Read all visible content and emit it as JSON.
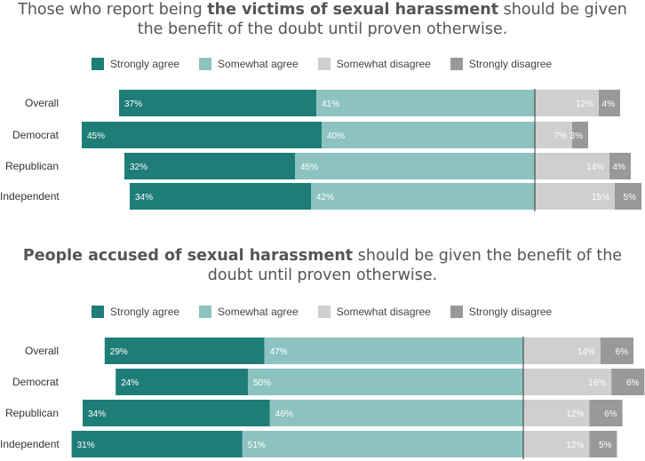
{
  "colors": {
    "strongly_agree": "#1f7d78",
    "somewhat_agree": "#8cc3c0",
    "somewhat_disagree": "#cfcfcf",
    "strongly_disagree": "#999999"
  },
  "charts": [
    {
      "title_pre": "Those who report being ",
      "title_bold": "the victims of sexual harassment",
      "title_post": " should be given the benefit of the doubt until proven otherwise.",
      "legend": [
        "Strongly agree",
        "Somewhat agree",
        "Somewhat disagree",
        "Strongly disagree"
      ]
    },
    {
      "title_pre": "",
      "title_bold": "People accused of sexual harassment",
      "title_post": " should be given the benefit of the doubt until proven otherwise.",
      "legend": [
        "Strongly agree",
        "Somewhat agree",
        "Somewhat disagree",
        "Strongly disagree"
      ]
    }
  ],
  "chart_data": [
    {
      "type": "bar",
      "categories": [
        "Overall",
        "Democrat",
        "Republican",
        "Independent"
      ],
      "series": [
        {
          "name": "Strongly agree",
          "values": [
            37,
            45,
            32,
            34
          ],
          "labels": [
            "37%",
            "45%",
            "32%",
            "34%"
          ]
        },
        {
          "name": "Somewhat agree",
          "values": [
            41,
            40,
            45,
            42
          ],
          "labels": [
            "41%",
            "40%",
            "45%",
            "42%"
          ]
        },
        {
          "name": "Somewhat disagree",
          "values": [
            12,
            7,
            14,
            15
          ],
          "labels": [
            "12%",
            "7%",
            "14%",
            "15%"
          ]
        },
        {
          "name": "Strongly disagree",
          "values": [
            4,
            3,
            4,
            5
          ],
          "labels": [
            "4%",
            "3%",
            "4%",
            "5%"
          ]
        }
      ]
    },
    {
      "type": "bar",
      "categories": [
        "Overall",
        "Democrat",
        "Republican",
        "Independent"
      ],
      "series": [
        {
          "name": "Strongly agree",
          "values": [
            29,
            24,
            34,
            31
          ],
          "labels": [
            "29%",
            "24%",
            "34%",
            "31%"
          ]
        },
        {
          "name": "Somewhat agree",
          "values": [
            47,
            50,
            46,
            51
          ],
          "labels": [
            "47%",
            "50%",
            "46%",
            "51%"
          ]
        },
        {
          "name": "Somewhat disagree",
          "values": [
            14,
            16,
            12,
            12
          ],
          "labels": [
            "14%",
            "16%",
            "12%",
            "12%"
          ]
        },
        {
          "name": "Strongly disagree",
          "values": [
            6,
            6,
            6,
            5
          ],
          "labels": [
            "6%",
            "6%",
            "6%",
            "5%"
          ]
        }
      ]
    }
  ]
}
